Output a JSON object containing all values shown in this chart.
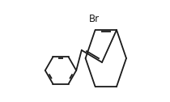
{
  "background_color": "#ffffff",
  "line_color": "#1a1a1a",
  "line_width": 1.3,
  "Br_label": "Br",
  "Br_fontsize": 8.5
}
